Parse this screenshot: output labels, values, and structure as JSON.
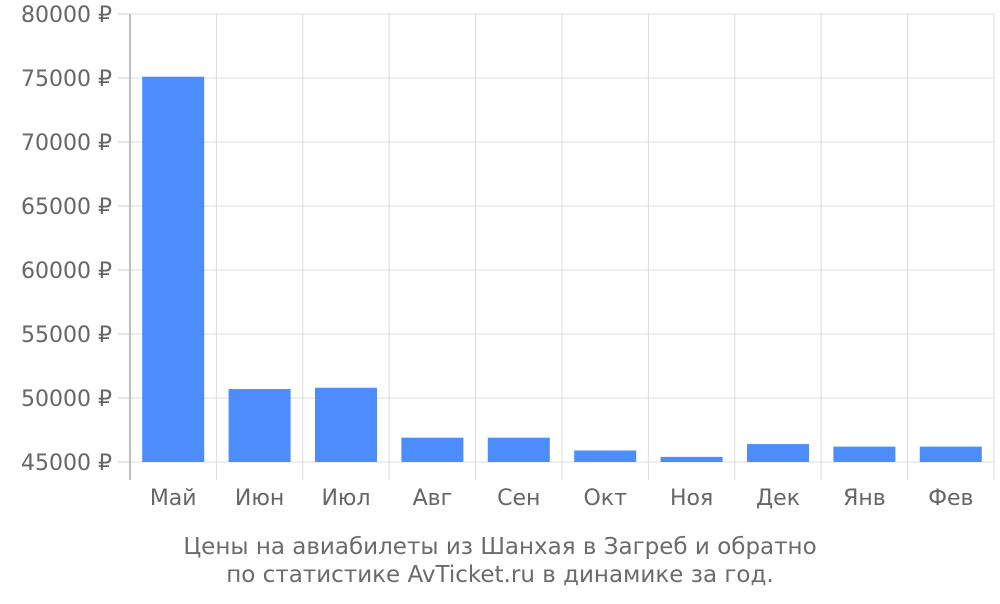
{
  "chart_data": {
    "type": "bar",
    "title": "",
    "xlabel": "",
    "ylabel": "",
    "currency_symbol": "₽",
    "categories": [
      "Май",
      "Июн",
      "Июл",
      "Авг",
      "Сен",
      "Окт",
      "Ноя",
      "Дек",
      "Янв",
      "Фев"
    ],
    "values": [
      75100,
      50700,
      50800,
      46900,
      46900,
      45900,
      45400,
      46400,
      46200,
      46200
    ],
    "ylim": [
      45000,
      80000
    ],
    "yticks": [
      45000,
      50000,
      55000,
      60000,
      65000,
      70000,
      75000,
      80000
    ],
    "ytick_labels": [
      "45000 ₽",
      "50000 ₽",
      "55000 ₽",
      "60000 ₽",
      "65000 ₽",
      "70000 ₽",
      "75000 ₽",
      "80000 ₽"
    ],
    "grid": true,
    "legend": "none",
    "bar_color": "#4d8dfb"
  },
  "caption": {
    "line1": "Цены на авиабилеты из Шанхая в Загреб и обратно",
    "line2": "по статистике AvTicket.ru в динамике за год."
  }
}
